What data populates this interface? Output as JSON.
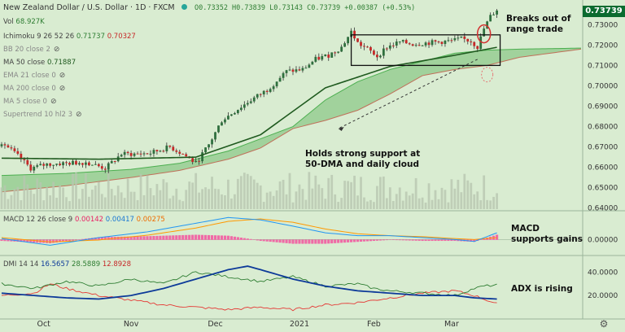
{
  "header": {
    "symbol": "New Zealand Dollar / U.S. Dollar · 1D · FXCM",
    "ohlc": "O0.73352 H0.73839 L0.73143 C0.73739 +0.00387 (+0.53%)"
  },
  "legend": {
    "vol": {
      "label": "Vol",
      "value": "68.927K"
    },
    "ichimoku": {
      "label": "Ichimoku 9 26 52 26",
      "v1": "0.71737",
      "v2": "0.70327"
    },
    "bb": "BB 20 close 2",
    "ma50": {
      "label": "MA 50 close",
      "value": "0.71887"
    },
    "ema21": "EMA 21 close 0",
    "ma200": "MA 200 close 0",
    "ma5": "MA 5 close 0",
    "supertrend": "Supertrend 10 hl2 3"
  },
  "price_tag": "0.73739",
  "annotations": {
    "breaks": [
      "Breaks out of",
      "range trade"
    ],
    "holds": [
      "Holds strong support at",
      "50-DMA and daily cloud"
    ],
    "macd": [
      "MACD",
      "supports gains"
    ],
    "adx": "ADX is rising"
  },
  "macd_legend": {
    "label": "MACD 12 26 close 9",
    "v1": "0.00142",
    "v2": "0.00417",
    "v3": "0.00275"
  },
  "dmi_legend": {
    "label": "DMI 14 14",
    "v1": "16.5657",
    "v2": "28.5889",
    "v3": "12.8928"
  },
  "colors": {
    "background": "#d9ecd1",
    "up": "#2f6f3e",
    "down": "#c62828",
    "ma": "#1f5a1f",
    "cloud": "#8ec98a",
    "macd": "#2196f3",
    "signal": "#ff9800",
    "hist": "#f06aa6",
    "di_plus": "#2e7d32",
    "di_minus": "#e53935",
    "adx": "#0d3a99",
    "tag": "#0b6b2f"
  },
  "chart_data": [
    {
      "type": "candlestick",
      "title": "New Zealand Dollar / U.S. Dollar · 1D · FXCM",
      "x_ticks": [
        "Oct",
        "Nov",
        "Dec",
        "2021",
        "Feb",
        "Mar"
      ],
      "y_ticks": [
        "0.73000",
        "0.72000",
        "0.71000",
        "0.70000",
        "0.69000",
        "0.68000",
        "0.67000",
        "0.66000",
        "0.65000",
        "0.64000"
      ],
      "ylim": [
        0.6395,
        0.7405
      ],
      "close_points": [
        [
          0,
          0.6725
        ],
        [
          5,
          0.6655
        ],
        [
          9,
          0.6595
        ],
        [
          14,
          0.6615
        ],
        [
          20,
          0.662
        ],
        [
          26,
          0.6625
        ],
        [
          32,
          0.6595
        ],
        [
          37,
          0.6665
        ],
        [
          41,
          0.6665
        ],
        [
          46,
          0.667
        ],
        [
          52,
          0.67
        ],
        [
          56,
          0.6665
        ],
        [
          60,
          0.662
        ],
        [
          64,
          0.671
        ],
        [
          68,
          0.683
        ],
        [
          72,
          0.6875
        ],
        [
          77,
          0.693
        ],
        [
          82,
          0.698
        ],
        [
          88,
          0.707
        ],
        [
          93,
          0.708
        ],
        [
          97,
          0.713
        ],
        [
          101,
          0.715
        ],
        [
          105,
          0.719
        ],
        [
          108,
          0.7265
        ],
        [
          110,
          0.721
        ],
        [
          113,
          0.718
        ],
        [
          116,
          0.7145
        ],
        [
          119,
          0.719
        ],
        [
          123,
          0.7215
        ],
        [
          127,
          0.7205
        ],
        [
          131,
          0.721
        ],
        [
          135,
          0.7215
        ],
        [
          139,
          0.722
        ],
        [
          142,
          0.723
        ],
        [
          145,
          0.722
        ],
        [
          147,
          0.719
        ],
        [
          149,
          0.728
        ],
        [
          151,
          0.734
        ],
        [
          153,
          0.7374
        ]
      ],
      "ma50": [
        [
          0,
          0.6645
        ],
        [
          30,
          0.664
        ],
        [
          60,
          0.665
        ],
        [
          80,
          0.676
        ],
        [
          100,
          0.699
        ],
        [
          120,
          0.7095
        ],
        [
          140,
          0.715
        ],
        [
          153,
          0.7189
        ]
      ],
      "cloud_upper": [
        [
          0,
          0.656
        ],
        [
          20,
          0.657
        ],
        [
          40,
          0.659
        ],
        [
          55,
          0.662
        ],
        [
          70,
          0.668
        ],
        [
          80,
          0.674
        ],
        [
          90,
          0.68
        ],
        [
          100,
          0.693
        ],
        [
          110,
          0.702
        ],
        [
          120,
          0.708
        ],
        [
          130,
          0.712
        ],
        [
          140,
          0.716
        ],
        [
          150,
          0.7175
        ],
        [
          160,
          0.718
        ],
        [
          179,
          0.7185
        ]
      ],
      "cloud_lower": [
        [
          0,
          0.648
        ],
        [
          20,
          0.651
        ],
        [
          40,
          0.655
        ],
        [
          55,
          0.6585
        ],
        [
          70,
          0.664
        ],
        [
          80,
          0.6695
        ],
        [
          90,
          0.679
        ],
        [
          100,
          0.683
        ],
        [
          110,
          0.688
        ],
        [
          120,
          0.696
        ],
        [
          130,
          0.705
        ],
        [
          140,
          0.708
        ],
        [
          150,
          0.71
        ],
        [
          160,
          0.714
        ],
        [
          179,
          0.718
        ]
      ],
      "range_box": {
        "top": 0.725,
        "bottom": 0.71,
        "start_bar": 108,
        "end_bar": 154
      },
      "volume_max": 100000
    },
    {
      "type": "line",
      "name": "MACD 12 26 close 9",
      "y_ticks": [
        "0.00000"
      ],
      "macd": [
        [
          0,
          0.0002
        ],
        [
          15,
          -0.0012
        ],
        [
          30,
          0.0004
        ],
        [
          45,
          0.0016
        ],
        [
          60,
          0.0034
        ],
        [
          70,
          0.0046
        ],
        [
          80,
          0.0041
        ],
        [
          90,
          0.0028
        ],
        [
          100,
          0.0014
        ],
        [
          110,
          0.0008
        ],
        [
          120,
          0.0008
        ],
        [
          130,
          0.0004
        ],
        [
          140,
          0.0
        ],
        [
          146,
          -0.0004
        ],
        [
          153,
          0.0014
        ]
      ],
      "signal": [
        [
          0,
          0.0004
        ],
        [
          15,
          -0.0005
        ],
        [
          30,
          -0.0001
        ],
        [
          45,
          0.0009
        ],
        [
          60,
          0.0024
        ],
        [
          70,
          0.0038
        ],
        [
          80,
          0.0043
        ],
        [
          90,
          0.0036
        ],
        [
          100,
          0.0022
        ],
        [
          110,
          0.0012
        ],
        [
          120,
          0.0008
        ],
        [
          130,
          0.0006
        ],
        [
          140,
          0.0002
        ],
        [
          146,
          0.0
        ],
        [
          153,
          0.0004
        ]
      ],
      "ylim": [
        -0.003,
        0.0055
      ]
    },
    {
      "type": "line",
      "name": "DMI 14 14",
      "y_ticks": [
        "40.0000",
        "20.0000"
      ],
      "ylim": [
        0,
        52
      ],
      "di_plus": [
        [
          0,
          30
        ],
        [
          10,
          26
        ],
        [
          20,
          32
        ],
        [
          30,
          28
        ],
        [
          40,
          34
        ],
        [
          50,
          30
        ],
        [
          60,
          40
        ],
        [
          70,
          36
        ],
        [
          80,
          32
        ],
        [
          90,
          36
        ],
        [
          100,
          28
        ],
        [
          110,
          30
        ],
        [
          115,
          26
        ],
        [
          120,
          24
        ],
        [
          130,
          22
        ],
        [
          140,
          20
        ],
        [
          146,
          26
        ],
        [
          149,
          28
        ],
        [
          153,
          29
        ]
      ],
      "di_minus": [
        [
          0,
          20
        ],
        [
          10,
          22
        ],
        [
          15,
          30
        ],
        [
          20,
          26
        ],
        [
          30,
          20
        ],
        [
          40,
          16
        ],
        [
          50,
          12
        ],
        [
          60,
          10
        ],
        [
          70,
          8
        ],
        [
          80,
          10
        ],
        [
          90,
          8
        ],
        [
          100,
          12
        ],
        [
          110,
          14
        ],
        [
          120,
          18
        ],
        [
          130,
          22
        ],
        [
          140,
          24
        ],
        [
          146,
          20
        ],
        [
          153,
          13
        ]
      ],
      "adx": [
        [
          0,
          22
        ],
        [
          10,
          20
        ],
        [
          20,
          18
        ],
        [
          30,
          17
        ],
        [
          40,
          20
        ],
        [
          50,
          26
        ],
        [
          60,
          34
        ],
        [
          70,
          42
        ],
        [
          76,
          45
        ],
        [
          80,
          42
        ],
        [
          90,
          34
        ],
        [
          100,
          28
        ],
        [
          110,
          24
        ],
        [
          120,
          22
        ],
        [
          130,
          20
        ],
        [
          140,
          20
        ],
        [
          146,
          18
        ],
        [
          153,
          17
        ]
      ]
    }
  ]
}
